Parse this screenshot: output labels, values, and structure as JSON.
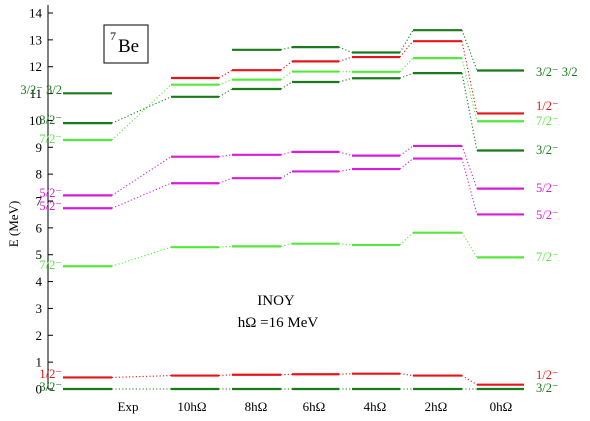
{
  "chart_data": {
    "type": "level-scheme",
    "nucleus": {
      "mass": "7",
      "symbol": "Be"
    },
    "ylabel": "E (MeV)",
    "ylim": [
      0,
      14
    ],
    "yticks": [
      "0",
      "1",
      "2",
      "3",
      "4",
      "5",
      "6",
      "7",
      "8",
      "9",
      "10",
      "11",
      "12",
      "13",
      "14"
    ],
    "annotation": {
      "line1": "INOY",
      "line2": "hΩ =16 MeV"
    },
    "colors": {
      "light-green": "#55e83c",
      "dark-green": "#1a7a1a",
      "magenta": "#d81cd8",
      "red": "#e8141a"
    },
    "columns": [
      {
        "label": "Exp",
        "levels": [
          {
            "E": 0.0,
            "color": "dark-green"
          },
          {
            "E": 0.43,
            "color": "red"
          },
          {
            "E": 4.57,
            "color": "light-green"
          },
          {
            "E": 6.73,
            "color": "magenta"
          },
          {
            "E": 7.21,
            "color": "magenta"
          },
          {
            "E": 9.27,
            "color": "light-green"
          },
          {
            "E": 9.9,
            "color": "dark-green"
          },
          {
            "E": 11.01,
            "color": "dark-green"
          }
        ]
      },
      {
        "label": "10hΩ",
        "levels": [
          {
            "E": 0.0,
            "color": "dark-green"
          },
          {
            "E": 0.5,
            "color": "red"
          },
          {
            "E": 5.28,
            "color": "light-green"
          },
          {
            "E": 7.66,
            "color": "magenta"
          },
          {
            "E": 8.65,
            "color": "magenta"
          },
          {
            "E": 10.88,
            "color": "dark-green"
          },
          {
            "E": 11.33,
            "color": "light-green"
          },
          {
            "E": 11.58,
            "color": "red"
          }
        ]
      },
      {
        "label": "8hΩ",
        "levels": [
          {
            "E": 0.0,
            "color": "dark-green"
          },
          {
            "E": 0.53,
            "color": "red"
          },
          {
            "E": 5.31,
            "color": "light-green"
          },
          {
            "E": 7.85,
            "color": "magenta"
          },
          {
            "E": 8.72,
            "color": "magenta"
          },
          {
            "E": 11.17,
            "color": "dark-green"
          },
          {
            "E": 11.52,
            "color": "light-green"
          },
          {
            "E": 11.87,
            "color": "red"
          },
          {
            "E": 12.63,
            "color": "dark-green"
          }
        ]
      },
      {
        "label": "6hΩ",
        "levels": [
          {
            "E": 0.0,
            "color": "dark-green"
          },
          {
            "E": 0.55,
            "color": "red"
          },
          {
            "E": 5.41,
            "color": "light-green"
          },
          {
            "E": 8.1,
            "color": "magenta"
          },
          {
            "E": 8.83,
            "color": "magenta"
          },
          {
            "E": 11.43,
            "color": "dark-green"
          },
          {
            "E": 11.82,
            "color": "light-green"
          },
          {
            "E": 12.2,
            "color": "red"
          },
          {
            "E": 12.73,
            "color": "dark-green"
          }
        ]
      },
      {
        "label": "4hΩ",
        "levels": [
          {
            "E": 0.0,
            "color": "dark-green"
          },
          {
            "E": 0.57,
            "color": "red"
          },
          {
            "E": 5.36,
            "color": "light-green"
          },
          {
            "E": 8.19,
            "color": "magenta"
          },
          {
            "E": 8.69,
            "color": "magenta"
          },
          {
            "E": 11.57,
            "color": "dark-green"
          },
          {
            "E": 11.81,
            "color": "light-green"
          },
          {
            "E": 12.36,
            "color": "red"
          },
          {
            "E": 12.53,
            "color": "dark-green"
          }
        ]
      },
      {
        "label": "2hΩ",
        "levels": [
          {
            "E": 0.0,
            "color": "dark-green"
          },
          {
            "E": 0.5,
            "color": "red"
          },
          {
            "E": 5.82,
            "color": "light-green"
          },
          {
            "E": 8.58,
            "color": "magenta"
          },
          {
            "E": 9.05,
            "color": "magenta"
          },
          {
            "E": 11.76,
            "color": "dark-green"
          },
          {
            "E": 12.32,
            "color": "light-green"
          },
          {
            "E": 12.95,
            "color": "red"
          },
          {
            "E": 13.36,
            "color": "dark-green"
          }
        ]
      },
      {
        "label": "0hΩ",
        "levels": [
          {
            "E": 0.0,
            "color": "dark-green"
          },
          {
            "E": 0.16,
            "color": "red"
          },
          {
            "E": 4.9,
            "color": "light-green"
          },
          {
            "E": 6.5,
            "color": "magenta"
          },
          {
            "E": 7.46,
            "color": "magenta"
          },
          {
            "E": 8.88,
            "color": "dark-green"
          },
          {
            "E": 9.97,
            "color": "light-green"
          },
          {
            "E": 10.26,
            "color": "red"
          },
          {
            "E": 11.86,
            "color": "dark-green"
          }
        ]
      }
    ],
    "connections": [
      {
        "from": [
          0,
          0
        ],
        "to": [
          1,
          0
        ]
      },
      {
        "from": [
          1,
          0
        ],
        "to": [
          2,
          0
        ]
      },
      {
        "from": [
          2,
          0
        ],
        "to": [
          3,
          0
        ]
      },
      {
        "from": [
          3,
          0
        ],
        "to": [
          4,
          0
        ]
      },
      {
        "from": [
          4,
          0
        ],
        "to": [
          5,
          0
        ]
      },
      {
        "from": [
          5,
          0
        ],
        "to": [
          6,
          0
        ]
      },
      {
        "from": [
          0,
          1
        ],
        "to": [
          1,
          1
        ]
      },
      {
        "from": [
          1,
          1
        ],
        "to": [
          2,
          1
        ]
      },
      {
        "from": [
          2,
          1
        ],
        "to": [
          3,
          1
        ]
      },
      {
        "from": [
          3,
          1
        ],
        "to": [
          4,
          1
        ]
      },
      {
        "from": [
          4,
          1
        ],
        "to": [
          5,
          1
        ]
      },
      {
        "from": [
          5,
          1
        ],
        "to": [
          6,
          1
        ]
      },
      {
        "from": [
          0,
          2
        ],
        "to": [
          1,
          2
        ]
      },
      {
        "from": [
          1,
          2
        ],
        "to": [
          2,
          2
        ]
      },
      {
        "from": [
          2,
          2
        ],
        "to": [
          3,
          2
        ]
      },
      {
        "from": [
          3,
          2
        ],
        "to": [
          4,
          2
        ]
      },
      {
        "from": [
          4,
          2
        ],
        "to": [
          5,
          2
        ]
      },
      {
        "from": [
          5,
          2
        ],
        "to": [
          6,
          2
        ]
      },
      {
        "from": [
          0,
          3
        ],
        "to": [
          1,
          3
        ]
      },
      {
        "from": [
          1,
          3
        ],
        "to": [
          2,
          3
        ]
      },
      {
        "from": [
          2,
          3
        ],
        "to": [
          3,
          3
        ]
      },
      {
        "from": [
          3,
          3
        ],
        "to": [
          4,
          3
        ]
      },
      {
        "from": [
          4,
          3
        ],
        "to": [
          5,
          3
        ]
      },
      {
        "from": [
          5,
          3
        ],
        "to": [
          6,
          3
        ]
      },
      {
        "from": [
          0,
          4
        ],
        "to": [
          1,
          4
        ]
      },
      {
        "from": [
          1,
          4
        ],
        "to": [
          2,
          4
        ]
      },
      {
        "from": [
          2,
          4
        ],
        "to": [
          3,
          4
        ]
      },
      {
        "from": [
          3,
          4
        ],
        "to": [
          4,
          4
        ]
      },
      {
        "from": [
          4,
          4
        ],
        "to": [
          5,
          4
        ]
      },
      {
        "from": [
          5,
          4
        ],
        "to": [
          6,
          4
        ]
      },
      {
        "from": [
          0,
          5
        ],
        "to": [
          1,
          6
        ]
      },
      {
        "from": [
          0,
          6
        ],
        "to": [
          1,
          5
        ]
      },
      {
        "from": [
          1,
          5
        ],
        "to": [
          2,
          5
        ]
      },
      {
        "from": [
          2,
          5
        ],
        "to": [
          3,
          5
        ]
      },
      {
        "from": [
          3,
          5
        ],
        "to": [
          4,
          5
        ]
      },
      {
        "from": [
          4,
          5
        ],
        "to": [
          5,
          5
        ]
      },
      {
        "from": [
          5,
          5
        ],
        "to": [
          6,
          5
        ]
      },
      {
        "from": [
          1,
          6
        ],
        "to": [
          2,
          6
        ]
      },
      {
        "from": [
          2,
          6
        ],
        "to": [
          3,
          6
        ]
      },
      {
        "from": [
          3,
          6
        ],
        "to": [
          4,
          6
        ]
      },
      {
        "from": [
          4,
          6
        ],
        "to": [
          5,
          6
        ]
      },
      {
        "from": [
          5,
          6
        ],
        "to": [
          6,
          6
        ]
      },
      {
        "from": [
          1,
          7
        ],
        "to": [
          2,
          7
        ]
      },
      {
        "from": [
          2,
          7
        ],
        "to": [
          3,
          7
        ]
      },
      {
        "from": [
          3,
          7
        ],
        "to": [
          4,
          7
        ]
      },
      {
        "from": [
          4,
          7
        ],
        "to": [
          5,
          7
        ]
      },
      {
        "from": [
          5,
          7
        ],
        "to": [
          6,
          7
        ]
      },
      {
        "from": [
          2,
          8
        ],
        "to": [
          3,
          8
        ]
      },
      {
        "from": [
          3,
          8
        ],
        "to": [
          4,
          8
        ]
      },
      {
        "from": [
          4,
          8
        ],
        "to": [
          5,
          8
        ]
      },
      {
        "from": [
          5,
          8
        ],
        "to": [
          6,
          8
        ]
      }
    ],
    "left_labels": [
      {
        "text": "3/2⁻",
        "E": 0.0,
        "color": "dark-green"
      },
      {
        "text": "1/2⁻",
        "E": 0.43,
        "color": "red"
      },
      {
        "text": "7/2⁻",
        "E": 4.57,
        "color": "light-green"
      },
      {
        "text": "5/2⁻",
        "E": 6.73,
        "color": "magenta"
      },
      {
        "text": "5/2⁻",
        "E": 7.21,
        "color": "magenta"
      },
      {
        "text": "7/2⁻",
        "E": 9.27,
        "color": "light-green"
      },
      {
        "text": "3/2⁻",
        "E": 9.9,
        "color": "dark-green"
      },
      {
        "text": "3/2⁻ 3/2",
        "E": 11.01,
        "color": "dark-green"
      }
    ],
    "right_labels": [
      {
        "text": "3/2⁻",
        "E": 0.0,
        "color": "dark-green"
      },
      {
        "text": "1/2⁻",
        "E": 0.16,
        "color": "red"
      },
      {
        "text": "7/2⁻",
        "E": 4.9,
        "color": "light-green"
      },
      {
        "text": "5/2⁻",
        "E": 6.5,
        "color": "magenta"
      },
      {
        "text": "5/2⁻",
        "E": 7.46,
        "color": "magenta"
      },
      {
        "text": "3/2⁻",
        "E": 8.88,
        "color": "dark-green"
      },
      {
        "text": "7/2⁻",
        "E": 9.97,
        "color": "light-green"
      },
      {
        "text": "1/2⁻",
        "E": 10.26,
        "color": "red"
      },
      {
        "text": "3/2⁻ 3/2",
        "E": 11.86,
        "color": "dark-green"
      }
    ]
  }
}
